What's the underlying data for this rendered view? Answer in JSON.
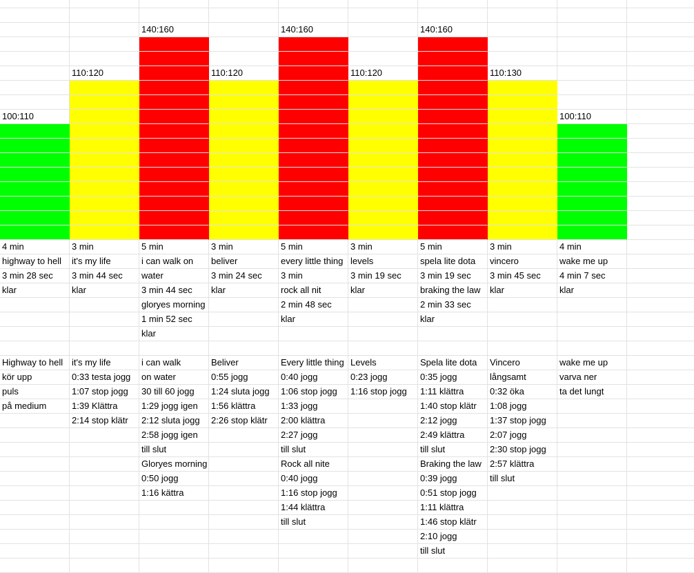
{
  "colors": {
    "green": "#00ff00",
    "yellow": "#ffff00",
    "red": "#ff0000",
    "gridline": "#e2e2e2"
  },
  "columns": [
    {
      "level": "low",
      "fill": "green",
      "bpm": "100:110",
      "rows": {
        "17": "4 min",
        "18": "highway to hell",
        "19": "3 min 28 sec",
        "20": "klar",
        "25": "Highway to hell",
        "26": "kör upp",
        "27": "puls",
        "28": "på medium"
      }
    },
    {
      "level": "medium",
      "fill": "yellow",
      "bpm": "110:120",
      "rows": {
        "17": "3 min",
        "18": "it's my life",
        "19": "3 min 44 sec",
        "20": "klar",
        "25": "it's my life",
        "26": "0:33 testa jogg",
        "27": "1:07 stop jogg",
        "28": "1:39 Klättra",
        "29": "2:14 stop klätr"
      }
    },
    {
      "level": "high",
      "fill": "red",
      "bpm": "140:160",
      "rows": {
        "17": "5 min",
        "18": "i can walk on",
        "19": "water",
        "20": "3 min 44 sec",
        "21": "gloryes morning",
        "22": "1 min 52 sec",
        "23": "klar",
        "25": "i can walk",
        "26": " on water",
        "27": "30 till 60 jogg",
        "28": "1:29 jogg igen",
        "29": "2:12 sluta jogg",
        "30": "2:58 jogg igen",
        "31": "till slut",
        "32": "Gloryes morning",
        "33": "0:50 jogg",
        "34": "1:16 kättra"
      }
    },
    {
      "level": "medium",
      "fill": "yellow",
      "bpm": "110:120",
      "rows": {
        "17": "3 min",
        "18": "beliver",
        "19": "3 min 24 sec",
        "20": "klar",
        "25": "Beliver",
        "26": "0:55 jogg",
        "27": "1:24 sluta jogg",
        "28": "1:56 klättra",
        "29": "2:26 stop klätr"
      }
    },
    {
      "level": "high",
      "fill": "red",
      "bpm": "140:160",
      "rows": {
        "17": "5 min",
        "18": "every little thing",
        "19": "3 min",
        "20": "rock all nit",
        "21": "2 min 48 sec",
        "22": "klar",
        "25": "Every little thing",
        "26": "0:40 jogg",
        "27": "1:06 stop jogg",
        "28": "1:33 jogg",
        "29": "2:00 klättra",
        "30": "2:27 jogg",
        "31": "till slut",
        "32": "Rock all nite",
        "33": "0:40 jogg",
        "34": "1:16 stop jogg",
        "35": "1:44 klättra",
        "36": "till slut"
      }
    },
    {
      "level": "medium",
      "fill": "yellow",
      "bpm": "110:120",
      "rows": {
        "17": "3 min",
        "18": "levels",
        "19": "3 min 19 sec",
        "20": "klar",
        "25": "Levels",
        "26": "0:23 jogg",
        "27": "1:16 stop jogg"
      }
    },
    {
      "level": "high",
      "fill": "red",
      "bpm": "140:160",
      "rows": {
        "17": "5 min",
        "18": "spela lite dota",
        "19": "3 min 19 sec",
        "20": "braking the law",
        "21": "2 min 33 sec",
        "22": "klar",
        "25": "Spela lite dota",
        "26": "0:35 jogg",
        "27": "1:11 klättra",
        "28": "1:40 stop klätr",
        "29": "2:12 jogg",
        "30": "2:49 klättra",
        "31": "till slut",
        "32": "Braking the law",
        "33": "0:39 jogg",
        "34": "0:51 stop jogg",
        "35": "1:11 klättra",
        "36": "1:46 stop klätr",
        "37": "2:10 jogg",
        "38": "till slut"
      }
    },
    {
      "level": "medium",
      "fill": "yellow",
      "bpm": "110:130",
      "rows": {
        "17": "3 min",
        "18": "vincero",
        "19": "3 min 45 sec",
        "20": "klar",
        "25": "Vincero",
        "26": "långsamt",
        "27": "0:32 öka",
        "28": "1:08 jogg",
        "29": "1:37 stop jogg",
        "30": "2:07 jogg",
        "31": "2:30 stop jogg",
        "32": "2:57 klättra",
        "33": "till slut"
      }
    },
    {
      "level": "low",
      "fill": "green",
      "bpm": "100:110",
      "rows": {
        "17": "4 min",
        "18": "wake me up",
        "19": "4 min 7 sec",
        "20": "klar",
        "25": "wake me up",
        "26": "varva ner",
        "27": "ta det lungt"
      }
    }
  ]
}
